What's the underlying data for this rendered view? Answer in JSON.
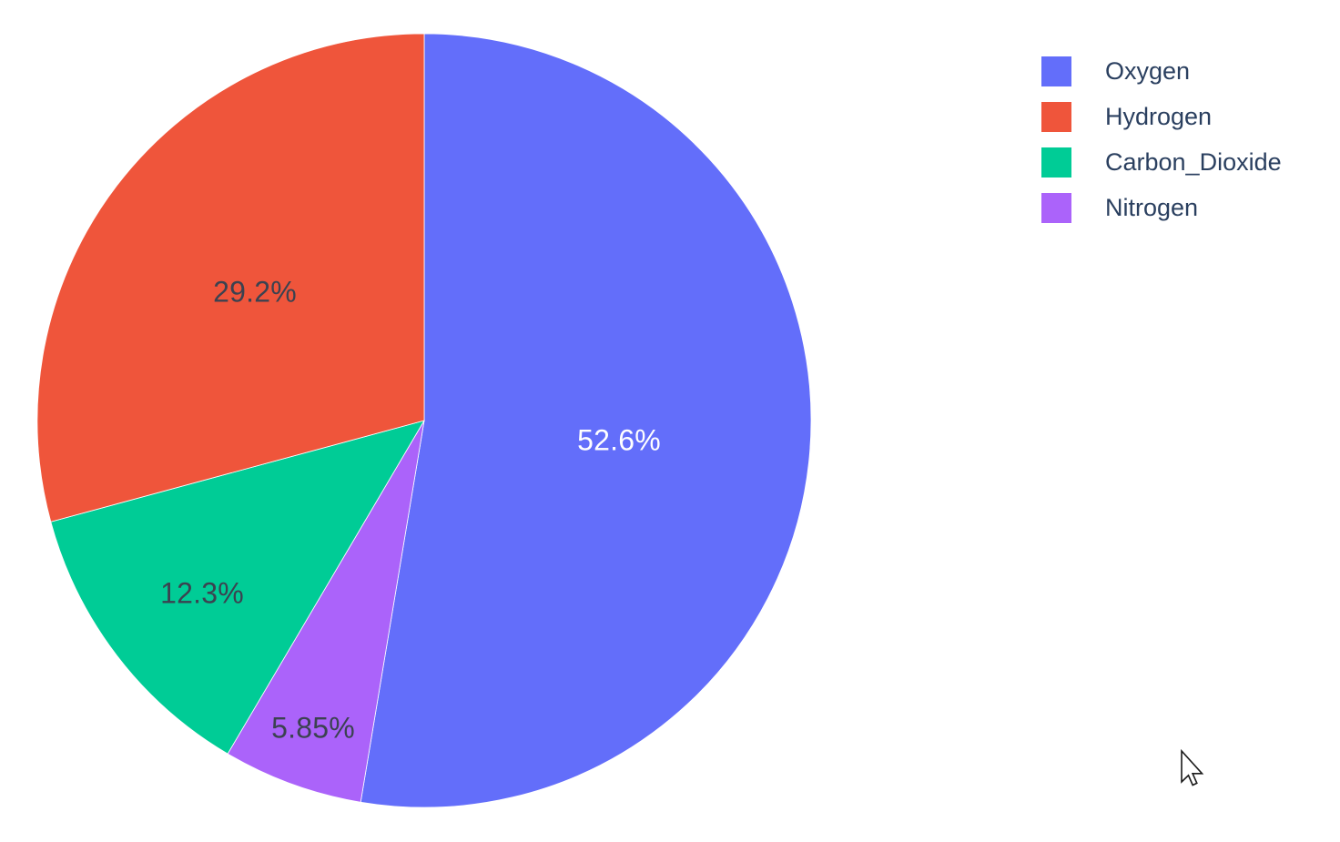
{
  "window": {
    "background_color": "#ffffff"
  },
  "chart_data": {
    "type": "pie",
    "title": "",
    "labels": [
      "Oxygen",
      "Hydrogen",
      "Carbon_Dioxide",
      "Nitrogen"
    ],
    "values_pct": [
      52.6,
      29.2,
      12.3,
      5.85
    ],
    "colors": [
      "#636EFA",
      "#EF553B",
      "#00CC96",
      "#AB63FA"
    ],
    "slice_labels": [
      "52.6%",
      "29.2%",
      "12.3%",
      "5.85%"
    ],
    "slice_label_colors": [
      "#ffffff",
      "#3b4250",
      "#3b4250",
      "#3b4250"
    ],
    "render_order_clockwise": [
      "Oxygen",
      "Nitrogen",
      "Carbon_Dioxide",
      "Hydrogen"
    ],
    "start_angle_deg": 0,
    "direction": "clockwise",
    "legend_position": "top-right",
    "legend_text_color": "#2a3f5f",
    "slice_border_color": "#ffffff"
  },
  "cursor": {
    "type": "arrow-pointer"
  }
}
